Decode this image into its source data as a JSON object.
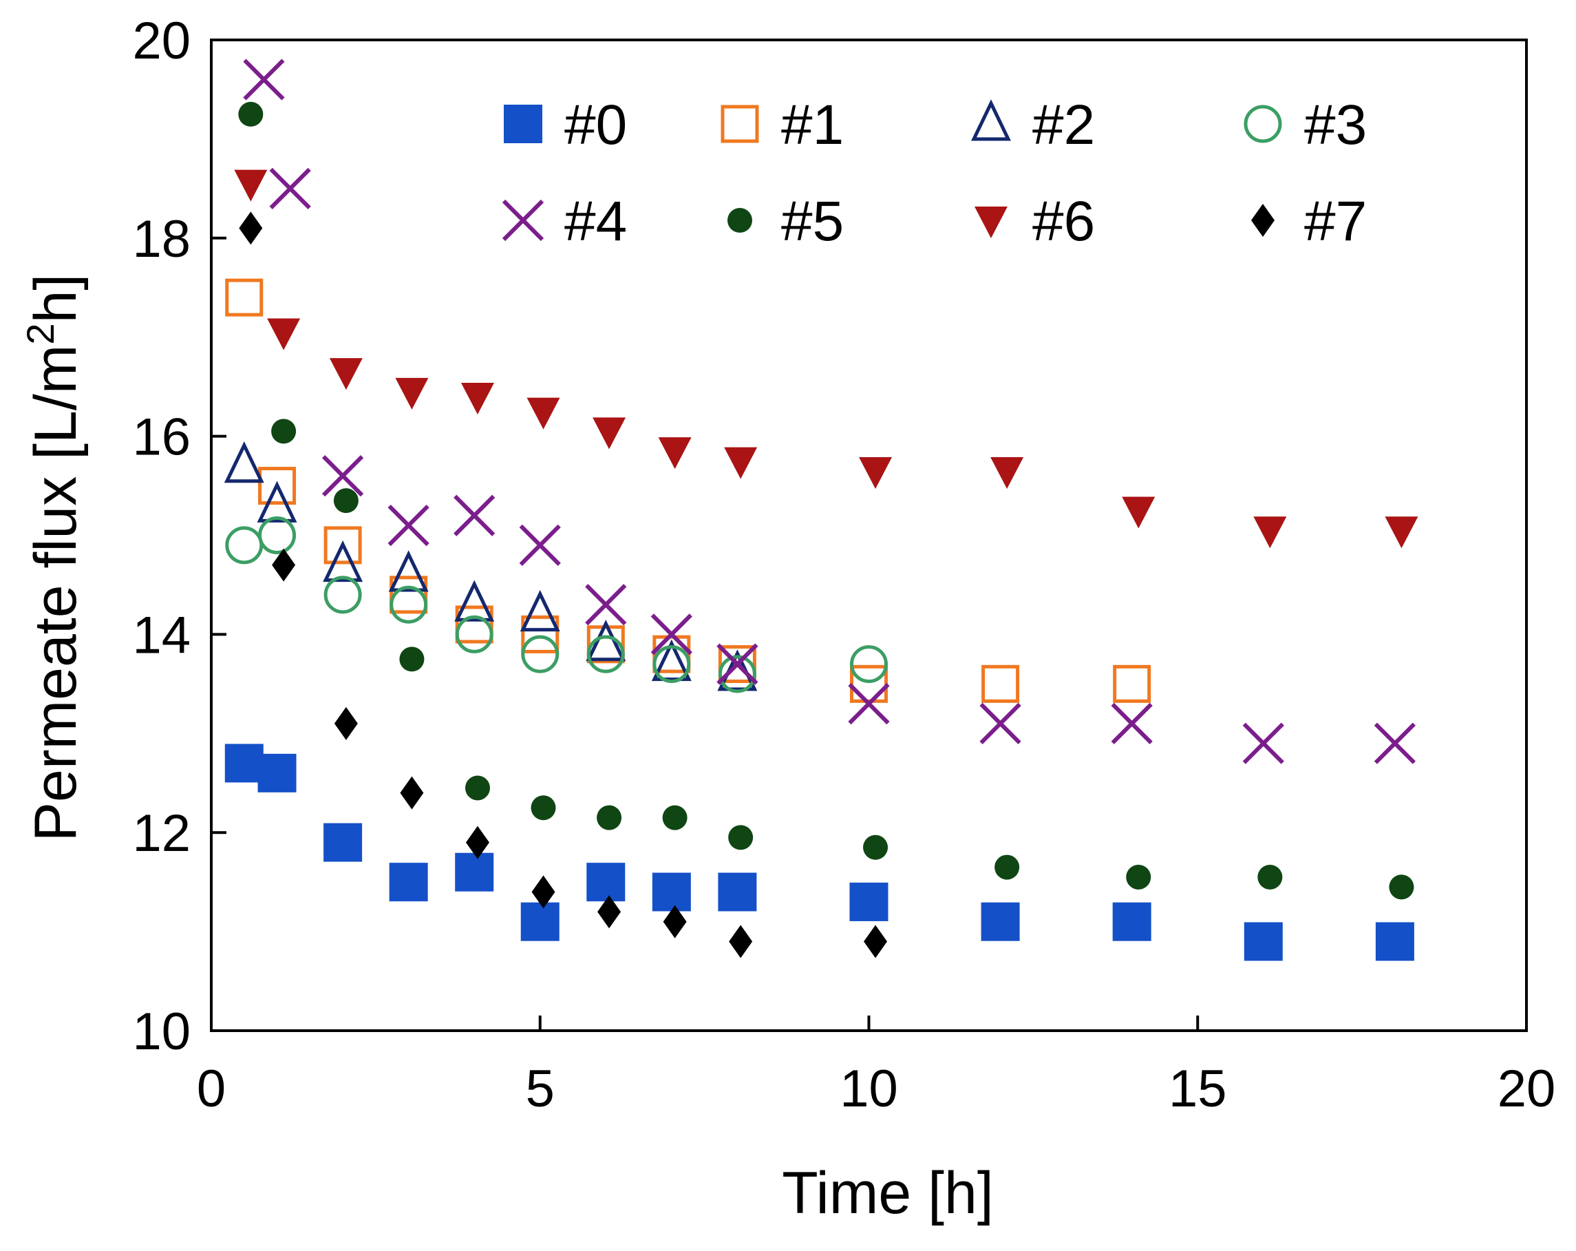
{
  "chart_data": {
    "type": "scatter",
    "title": "",
    "xlabel": "Time [h]",
    "ylabel_parts": [
      "Permeate flux [L/m",
      "2",
      "h]"
    ],
    "xlim": [
      0,
      20
    ],
    "ylim": [
      10,
      20
    ],
    "xticks": [
      0,
      5,
      10,
      15,
      20
    ],
    "yticks": [
      10,
      12,
      14,
      16,
      18,
      20
    ],
    "grid": false,
    "legend_position": "top-right",
    "series": [
      {
        "name": "#0",
        "marker": "filled-square",
        "color": "#1450C8",
        "points": [
          [
            0.5,
            12.7
          ],
          [
            1,
            12.6
          ],
          [
            2,
            11.9
          ],
          [
            3,
            11.5
          ],
          [
            4,
            11.6
          ],
          [
            5,
            11.1
          ],
          [
            6,
            11.5
          ],
          [
            7,
            11.4
          ],
          [
            8,
            11.4
          ],
          [
            10,
            11.3
          ],
          [
            12,
            11.1
          ],
          [
            14,
            11.1
          ],
          [
            16,
            10.9
          ],
          [
            18,
            10.9
          ]
        ]
      },
      {
        "name": "#1",
        "marker": "open-square",
        "color": "#F07820",
        "points": [
          [
            0.5,
            17.4
          ],
          [
            1,
            15.5
          ],
          [
            2,
            14.9
          ],
          [
            3,
            14.4
          ],
          [
            4,
            14.1
          ],
          [
            5,
            14.0
          ],
          [
            6,
            13.9
          ],
          [
            7,
            13.8
          ],
          [
            8,
            13.7
          ],
          [
            10,
            13.5
          ],
          [
            12,
            13.5
          ],
          [
            14,
            13.5
          ]
        ]
      },
      {
        "name": "#2",
        "marker": "open-triangle",
        "color": "#14286E",
        "points": [
          [
            0.5,
            15.7
          ],
          [
            1,
            15.3
          ],
          [
            2,
            14.7
          ],
          [
            3,
            14.6
          ],
          [
            4,
            14.3
          ],
          [
            5,
            14.2
          ],
          [
            6,
            13.9
          ],
          [
            7,
            13.7
          ],
          [
            8,
            13.6
          ]
        ]
      },
      {
        "name": "#3",
        "marker": "open-circle",
        "color": "#3C9E64",
        "points": [
          [
            0.5,
            14.9
          ],
          [
            1,
            15.0
          ],
          [
            2,
            14.4
          ],
          [
            3,
            14.3
          ],
          [
            4,
            14.0
          ],
          [
            5,
            13.8
          ],
          [
            6,
            13.8
          ],
          [
            7,
            13.7
          ],
          [
            8,
            13.6
          ],
          [
            10,
            13.7
          ]
        ]
      },
      {
        "name": "#4",
        "marker": "x",
        "color": "#7B1E8C",
        "points": [
          [
            0.8,
            19.6
          ],
          [
            1.2,
            18.5
          ],
          [
            2,
            15.6
          ],
          [
            3,
            15.1
          ],
          [
            4,
            15.2
          ],
          [
            5,
            14.9
          ],
          [
            6,
            14.3
          ],
          [
            7,
            14.0
          ],
          [
            8,
            13.7
          ],
          [
            10,
            13.3
          ],
          [
            12,
            13.1
          ],
          [
            14,
            13.1
          ],
          [
            16,
            12.9
          ],
          [
            18,
            12.9
          ]
        ]
      },
      {
        "name": "#5",
        "marker": "filled-circle",
        "color": "#0F4614",
        "points": [
          [
            0.6,
            19.25
          ],
          [
            1.1,
            16.05
          ],
          [
            2.05,
            15.35
          ],
          [
            3.05,
            13.75
          ],
          [
            4.05,
            12.45
          ],
          [
            5.05,
            12.25
          ],
          [
            6.05,
            12.15
          ],
          [
            7.05,
            12.15
          ],
          [
            8.05,
            11.95
          ],
          [
            10.1,
            11.85
          ],
          [
            12.1,
            11.65
          ],
          [
            14.1,
            11.55
          ],
          [
            16.1,
            11.55
          ],
          [
            18.1,
            11.45
          ]
        ]
      },
      {
        "name": "#6",
        "marker": "filled-down-triangle",
        "color": "#AA1414",
        "points": [
          [
            0.6,
            18.55
          ],
          [
            1.1,
            17.05
          ],
          [
            2.05,
            16.65
          ],
          [
            3.05,
            16.45
          ],
          [
            4.05,
            16.4
          ],
          [
            5.05,
            16.25
          ],
          [
            6.05,
            16.05
          ],
          [
            7.05,
            15.85
          ],
          [
            8.05,
            15.75
          ],
          [
            10.1,
            15.65
          ],
          [
            12.1,
            15.65
          ],
          [
            14.1,
            15.25
          ],
          [
            16.1,
            15.05
          ],
          [
            18.1,
            15.05
          ]
        ]
      },
      {
        "name": "#7",
        "marker": "filled-diamond",
        "color": "#000000",
        "points": [
          [
            0.6,
            18.1
          ],
          [
            1.1,
            14.7
          ],
          [
            2.05,
            13.1
          ],
          [
            3.05,
            12.4
          ],
          [
            4.05,
            11.9
          ],
          [
            5.05,
            11.4
          ],
          [
            6.05,
            11.2
          ],
          [
            7.05,
            11.1
          ],
          [
            8.05,
            10.9
          ],
          [
            10.1,
            10.9
          ]
        ]
      }
    ]
  }
}
